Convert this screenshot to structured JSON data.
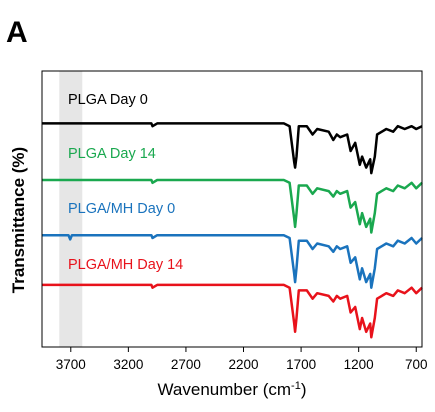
{
  "panel_letter": "A",
  "chart_data": {
    "type": "line",
    "xlabel": "Wavenumber (cm",
    "xlabel_sup": "-1",
    "xlabel_close": ")",
    "ylabel": "Transmittance (%)",
    "xlim": [
      3950,
      650
    ],
    "x_reversed": true,
    "xticks": [
      3700,
      3200,
      2700,
      2200,
      1700,
      1200,
      700
    ],
    "grid": false,
    "legend": "inline labels above each curve",
    "highlight_band": {
      "from": 3800,
      "to": 3600,
      "color": "#e6e6e6"
    },
    "series": [
      {
        "name": "PLGA Day 0",
        "color": "#000000",
        "offset": 0.81,
        "points": [
          [
            3950,
            0
          ],
          [
            3000,
            0
          ],
          [
            2990,
            -0.01
          ],
          [
            2950,
            0
          ],
          [
            1850,
            0
          ],
          [
            1800,
            -0.01
          ],
          [
            1760,
            -0.14
          ],
          [
            1752,
            -0.16
          ],
          [
            1740,
            -0.12
          ],
          [
            1720,
            -0.01
          ],
          [
            1650,
            -0.01
          ],
          [
            1600,
            -0.04
          ],
          [
            1560,
            -0.02
          ],
          [
            1460,
            -0.03
          ],
          [
            1420,
            -0.06
          ],
          [
            1390,
            -0.04
          ],
          [
            1360,
            -0.05
          ],
          [
            1300,
            -0.04
          ],
          [
            1270,
            -0.1
          ],
          [
            1230,
            -0.07
          ],
          [
            1190,
            -0.15
          ],
          [
            1170,
            -0.12
          ],
          [
            1135,
            -0.16
          ],
          [
            1100,
            -0.13
          ],
          [
            1090,
            -0.18
          ],
          [
            1060,
            -0.12
          ],
          [
            1040,
            -0.04
          ],
          [
            960,
            -0.02
          ],
          [
            900,
            -0.03
          ],
          [
            860,
            -0.01
          ],
          [
            800,
            -0.02
          ],
          [
            740,
            -0.01
          ],
          [
            700,
            -0.02
          ],
          [
            650,
            -0.01
          ]
        ]
      },
      {
        "name": "PLGA Day 14",
        "color": "#1aa84f",
        "offset": 0.605,
        "points": [
          [
            3950,
            0
          ],
          [
            3000,
            0
          ],
          [
            2990,
            -0.01
          ],
          [
            2950,
            0
          ],
          [
            1850,
            0
          ],
          [
            1800,
            -0.01
          ],
          [
            1760,
            -0.14
          ],
          [
            1752,
            -0.17
          ],
          [
            1740,
            -0.12
          ],
          [
            1720,
            -0.02
          ],
          [
            1650,
            -0.02
          ],
          [
            1600,
            -0.05
          ],
          [
            1560,
            -0.03
          ],
          [
            1460,
            -0.04
          ],
          [
            1420,
            -0.06
          ],
          [
            1390,
            -0.04
          ],
          [
            1360,
            -0.05
          ],
          [
            1300,
            -0.04
          ],
          [
            1270,
            -0.1
          ],
          [
            1230,
            -0.08
          ],
          [
            1190,
            -0.16
          ],
          [
            1170,
            -0.12
          ],
          [
            1135,
            -0.17
          ],
          [
            1100,
            -0.14
          ],
          [
            1090,
            -0.19
          ],
          [
            1060,
            -0.12
          ],
          [
            1040,
            -0.05
          ],
          [
            960,
            -0.03
          ],
          [
            900,
            -0.04
          ],
          [
            860,
            -0.02
          ],
          [
            800,
            -0.03
          ],
          [
            740,
            -0.01
          ],
          [
            700,
            -0.03
          ],
          [
            650,
            -0.01
          ]
        ]
      },
      {
        "name": "PLGA/MH Day 0",
        "color": "#1a73bd",
        "offset": 0.405,
        "points": [
          [
            3950,
            0
          ],
          [
            3720,
            0
          ],
          [
            3705,
            -0.015
          ],
          [
            3690,
            0
          ],
          [
            3000,
            0
          ],
          [
            2990,
            -0.01
          ],
          [
            2950,
            0
          ],
          [
            1850,
            0
          ],
          [
            1800,
            -0.01
          ],
          [
            1760,
            -0.14
          ],
          [
            1752,
            -0.17
          ],
          [
            1740,
            -0.12
          ],
          [
            1720,
            -0.02
          ],
          [
            1650,
            -0.02
          ],
          [
            1600,
            -0.05
          ],
          [
            1560,
            -0.03
          ],
          [
            1460,
            -0.04
          ],
          [
            1420,
            -0.06
          ],
          [
            1390,
            -0.04
          ],
          [
            1360,
            -0.05
          ],
          [
            1300,
            -0.04
          ],
          [
            1270,
            -0.1
          ],
          [
            1230,
            -0.08
          ],
          [
            1190,
            -0.16
          ],
          [
            1170,
            -0.12
          ],
          [
            1135,
            -0.17
          ],
          [
            1100,
            -0.14
          ],
          [
            1090,
            -0.19
          ],
          [
            1060,
            -0.12
          ],
          [
            1040,
            -0.05
          ],
          [
            960,
            -0.03
          ],
          [
            900,
            -0.04
          ],
          [
            860,
            -0.02
          ],
          [
            800,
            -0.03
          ],
          [
            740,
            -0.01
          ],
          [
            700,
            -0.03
          ],
          [
            650,
            -0.01
          ]
        ]
      },
      {
        "name": "PLGA/MH Day 14",
        "color": "#e8121b",
        "offset": 0.225,
        "points": [
          [
            3950,
            0
          ],
          [
            3000,
            0
          ],
          [
            2990,
            -0.01
          ],
          [
            2950,
            0
          ],
          [
            1850,
            0
          ],
          [
            1800,
            -0.01
          ],
          [
            1760,
            -0.14
          ],
          [
            1752,
            -0.17
          ],
          [
            1740,
            -0.12
          ],
          [
            1720,
            -0.02
          ],
          [
            1650,
            -0.02
          ],
          [
            1600,
            -0.05
          ],
          [
            1560,
            -0.03
          ],
          [
            1460,
            -0.04
          ],
          [
            1420,
            -0.06
          ],
          [
            1390,
            -0.04
          ],
          [
            1360,
            -0.05
          ],
          [
            1300,
            -0.04
          ],
          [
            1270,
            -0.1
          ],
          [
            1230,
            -0.08
          ],
          [
            1190,
            -0.16
          ],
          [
            1170,
            -0.12
          ],
          [
            1135,
            -0.17
          ],
          [
            1100,
            -0.14
          ],
          [
            1090,
            -0.19
          ],
          [
            1060,
            -0.12
          ],
          [
            1040,
            -0.05
          ],
          [
            960,
            -0.03
          ],
          [
            900,
            -0.04
          ],
          [
            860,
            -0.02
          ],
          [
            800,
            -0.03
          ],
          [
            740,
            -0.01
          ],
          [
            700,
            -0.03
          ],
          [
            650,
            -0.01
          ]
        ]
      }
    ]
  }
}
